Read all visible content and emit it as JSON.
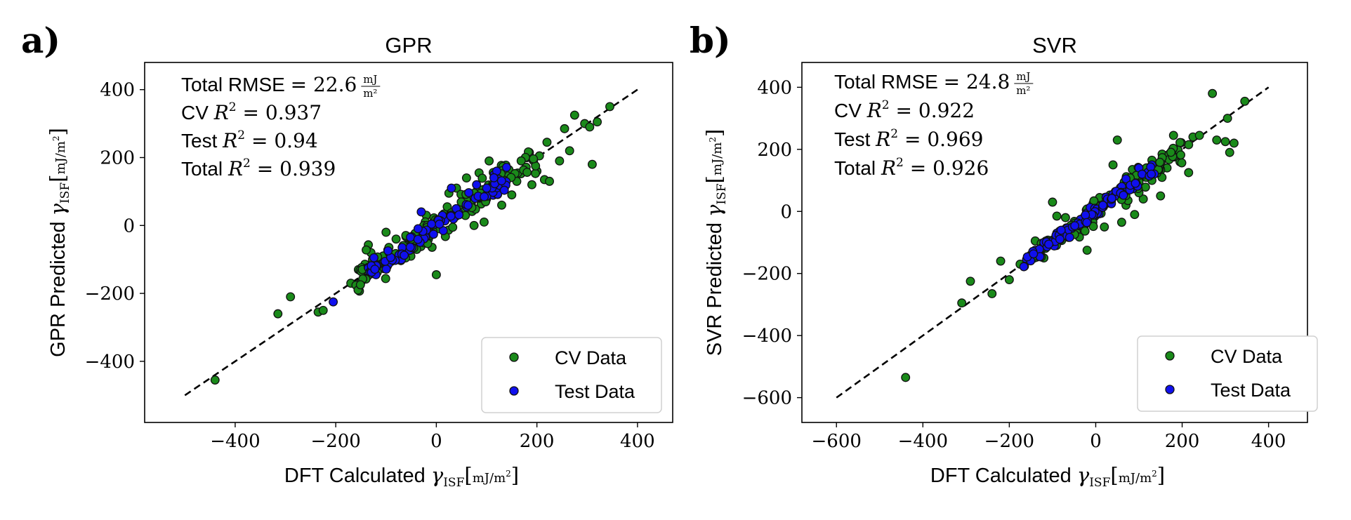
{
  "chart_data": [
    {
      "panel_label": "a)",
      "type": "scatter",
      "title": "GPR",
      "xlabel": "DFT Calculated",
      "ylabel": "GPR Predicted",
      "quantity_symbol": "γ",
      "quantity_subscript": "ISF",
      "unit_numerator": "mJ",
      "unit_denominator": "m²",
      "unit_denominator_base": "m",
      "unit_denominator_exp": "2",
      "xlim": [
        -580,
        470
      ],
      "ylim": [
        -580,
        480
      ],
      "xticks": [
        -400,
        -200,
        0,
        200,
        400
      ],
      "yticks": [
        -400,
        -200,
        0,
        200,
        400
      ],
      "xtick_labels": [
        "−400",
        "−200",
        "0",
        "200",
        "400"
      ],
      "ytick_labels": [
        "−400",
        "−200",
        "0",
        "200",
        "400"
      ],
      "diagonal": [
        -500,
        400
      ],
      "stats": [
        {
          "label": "Total RMSE",
          "value": "22.6",
          "unit": true
        },
        {
          "label": "CV",
          "value": "0.937",
          "r2": true
        },
        {
          "label": "Test",
          "value": "0.94",
          "r2": true
        },
        {
          "label": "Total",
          "value": "0.939",
          "r2": true
        }
      ],
      "eq": "=",
      "r_symbol": "R",
      "r_exp": "2",
      "legend_position": "lower-right",
      "series": [
        {
          "name": "CV Data",
          "color": "#1a8a1a",
          "outliers": [
            [
              -440,
              -455
            ],
            [
              -315,
              -260
            ],
            [
              -290,
              -210
            ],
            [
              -235,
              -255
            ],
            [
              -225,
              -250
            ],
            [
              -170,
              -170
            ],
            [
              -155,
              -130
            ],
            [
              -140,
              -140
            ],
            [
              -130,
              -80
            ],
            [
              -100,
              -20
            ],
            [
              0,
              -145
            ],
            [
              105,
              190
            ],
            [
              160,
              130
            ],
            [
              215,
              135
            ],
            [
              225,
              130
            ],
            [
              220,
              245
            ],
            [
              255,
              285
            ],
            [
              275,
              325
            ],
            [
              295,
              300
            ],
            [
              305,
              290
            ],
            [
              310,
              180
            ],
            [
              320,
              305
            ],
            [
              345,
              350
            ],
            [
              265,
              220
            ],
            [
              245,
              190
            ],
            [
              205,
              205
            ],
            [
              185,
              215
            ],
            [
              190,
              120
            ],
            [
              150,
              90
            ],
            [
              130,
              60
            ],
            [
              95,
              10
            ],
            [
              75,
              0
            ],
            [
              -60,
              -90
            ],
            [
              -80,
              -40
            ],
            [
              40,
              110
            ],
            [
              25,
              95
            ],
            [
              -20,
              30
            ],
            [
              180,
              200
            ],
            [
              200,
              160
            ],
            [
              140,
              170
            ],
            [
              120,
              95
            ],
            [
              -110,
              -100
            ],
            [
              60,
              140
            ],
            [
              85,
              155
            ]
          ],
          "band": {
            "count": 170,
            "seed": 11,
            "x_min": -160,
            "x_max": 200,
            "spread": 22
          }
        },
        {
          "name": "Test Data",
          "color": "#1010ee",
          "outliers": [
            [
              -205,
              -225
            ],
            [
              -135,
              -125
            ],
            [
              -120,
              -145
            ],
            [
              -30,
              40
            ],
            [
              115,
              150
            ],
            [
              120,
              160
            ],
            [
              100,
              90
            ],
            [
              30,
              110
            ],
            [
              -70,
              -95
            ],
            [
              -100,
              -110
            ],
            [
              60,
              55
            ],
            [
              80,
              120
            ]
          ],
          "band": {
            "count": 80,
            "seed": 23,
            "x_min": -140,
            "x_max": 140,
            "spread": 14
          }
        }
      ]
    },
    {
      "panel_label": "b)",
      "type": "scatter",
      "title": "SVR",
      "xlabel": "DFT Calculated",
      "ylabel": "SVR Predicted",
      "quantity_symbol": "γ",
      "quantity_subscript": "ISF",
      "unit_numerator": "mJ",
      "unit_denominator": "m²",
      "unit_denominator_base": "m",
      "unit_denominator_exp": "2",
      "xlim": [
        -680,
        490
      ],
      "ylim": [
        -680,
        480
      ],
      "xticks": [
        -600,
        -400,
        -200,
        0,
        200,
        400
      ],
      "yticks": [
        -600,
        -400,
        -200,
        0,
        200,
        400
      ],
      "xtick_labels": [
        "−600",
        "−400",
        "−200",
        "0",
        "200",
        "400"
      ],
      "ytick_labels": [
        "−600",
        "−400",
        "−200",
        "0",
        "200",
        "400"
      ],
      "diagonal": [
        -600,
        400
      ],
      "stats": [
        {
          "label": "Total RMSE",
          "value": "24.8",
          "unit": true
        },
        {
          "label": "CV",
          "value": "0.922",
          "r2": true
        },
        {
          "label": "Test",
          "value": "0.969",
          "r2": true
        },
        {
          "label": "Total",
          "value": "0.926",
          "r2": true
        }
      ],
      "eq": "=",
      "r_symbol": "R",
      "r_exp": "2",
      "legend_position": "lower-right",
      "series": [
        {
          "name": "CV Data",
          "color": "#1a8a1a",
          "outliers": [
            [
              -440,
              -535
            ],
            [
              -310,
              -295
            ],
            [
              -290,
              -225
            ],
            [
              -240,
              -265
            ],
            [
              -220,
              -160
            ],
            [
              -200,
              -220
            ],
            [
              -175,
              -170
            ],
            [
              -150,
              -140
            ],
            [
              -140,
              -95
            ],
            [
              -100,
              30
            ],
            [
              -90,
              -15
            ],
            [
              -50,
              -50
            ],
            [
              -20,
              -125
            ],
            [
              20,
              -50
            ],
            [
              40,
              150
            ],
            [
              50,
              230
            ],
            [
              100,
              95
            ],
            [
              130,
              165
            ],
            [
              180,
              245
            ],
            [
              195,
              160
            ],
            [
              215,
              125
            ],
            [
              225,
              240
            ],
            [
              240,
              245
            ],
            [
              270,
              380
            ],
            [
              280,
              230
            ],
            [
              305,
              300
            ],
            [
              310,
              190
            ],
            [
              320,
              220
            ],
            [
              345,
              355
            ],
            [
              300,
              225
            ],
            [
              165,
              140
            ],
            [
              150,
              50
            ],
            [
              110,
              40
            ],
            [
              90,
              -10
            ],
            [
              60,
              -35
            ],
            [
              190,
              190
            ],
            [
              130,
              100
            ],
            [
              85,
              135
            ],
            [
              -70,
              -20
            ],
            [
              -120,
              -150
            ],
            [
              100,
              60
            ],
            [
              70,
              20
            ],
            [
              215,
              215
            ]
          ],
          "band": {
            "count": 170,
            "seed": 37,
            "x_min": -150,
            "x_max": 200,
            "spread": 18
          }
        },
        {
          "name": "Test Data",
          "color": "#1010ee",
          "outliers": [
            [
              -160,
              -155
            ],
            [
              -140,
              -125
            ],
            [
              -120,
              -100
            ],
            [
              -20,
              -5
            ],
            [
              60,
              80
            ],
            [
              70,
              105
            ],
            [
              100,
              140
            ],
            [
              130,
              150
            ],
            [
              -90,
              -70
            ],
            [
              40,
              55
            ]
          ],
          "band": {
            "count": 80,
            "seed": 41,
            "x_min": -170,
            "x_max": 140,
            "spread": 10
          }
        }
      ]
    }
  ]
}
